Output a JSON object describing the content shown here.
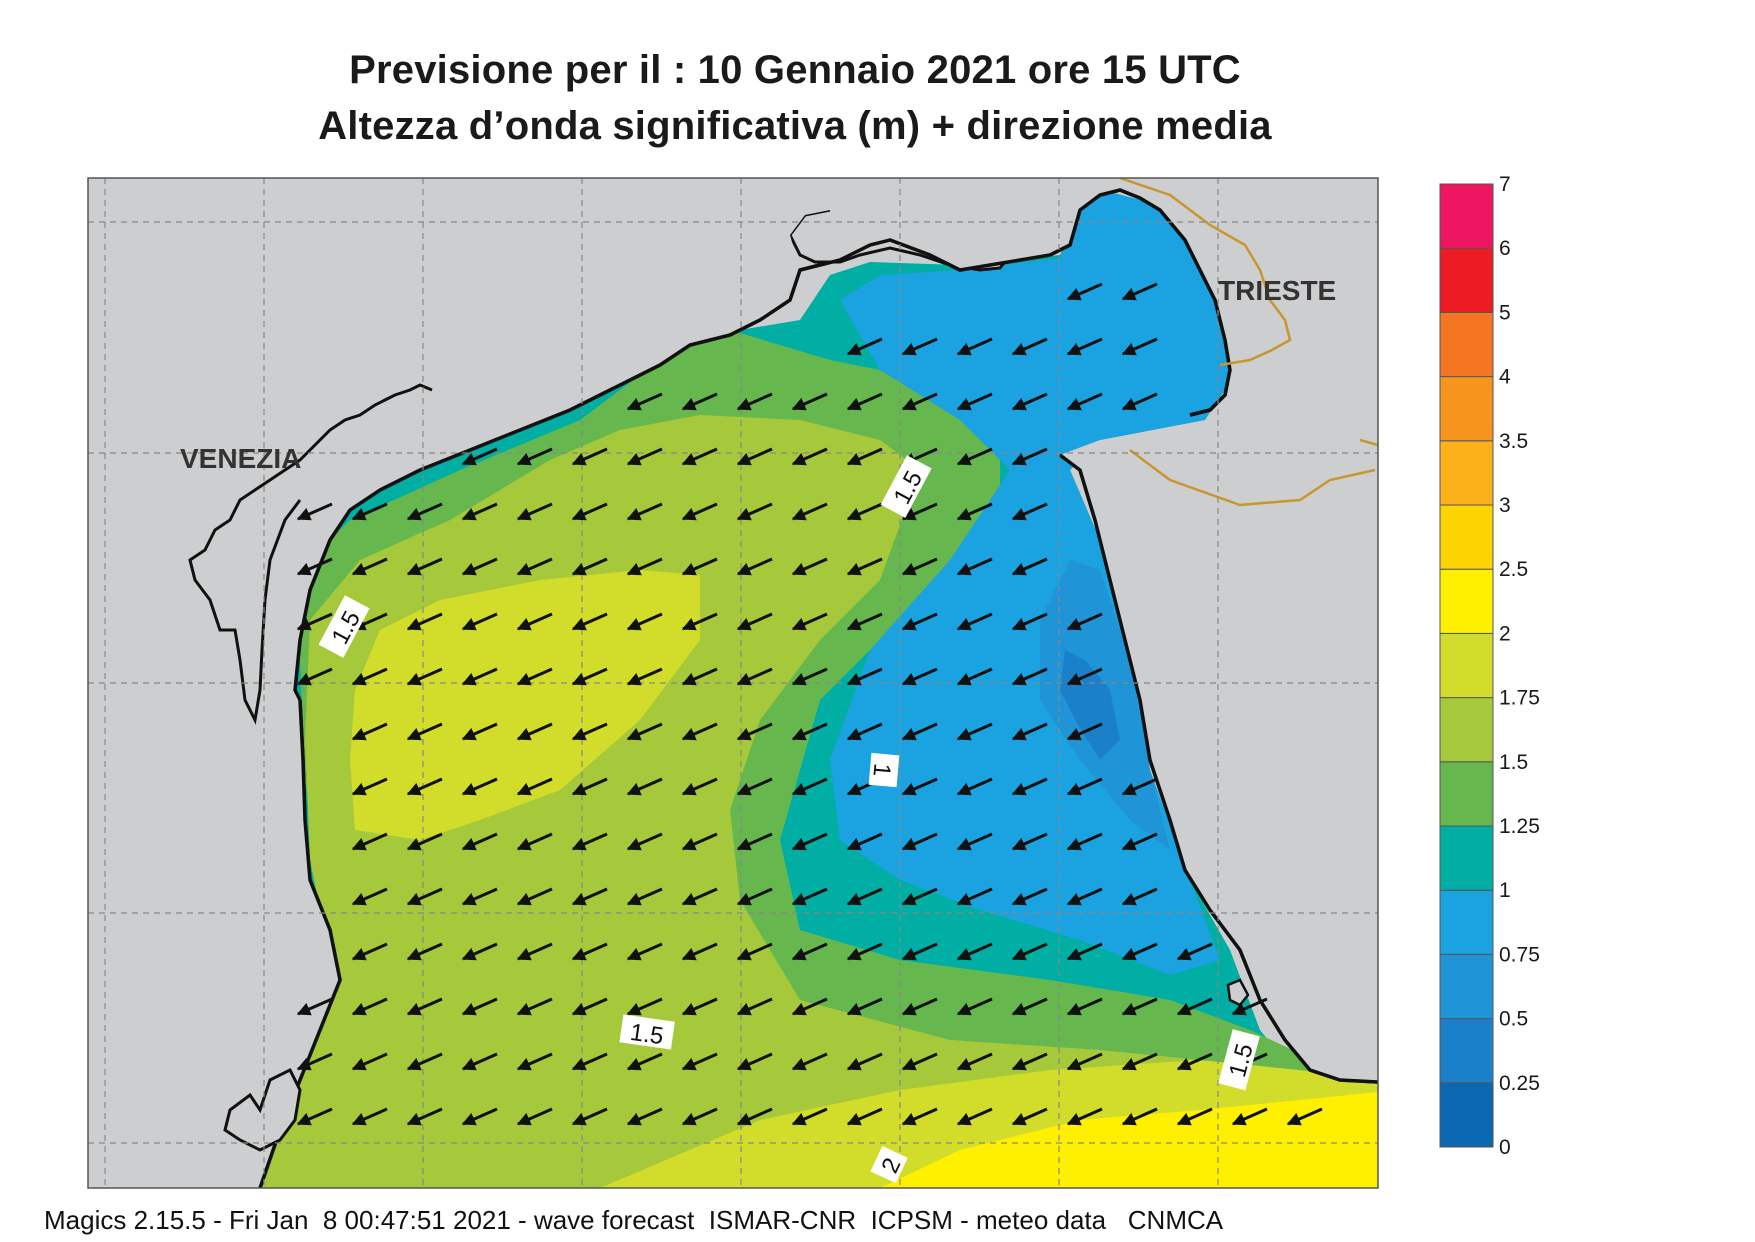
{
  "title_line1": "Previsione per il  :  10  Gennaio  2021   ore 15 UTC",
  "title_line2": "Altezza d’onda significativa (m) + direzione media",
  "places": [
    "VENEZIA",
    "TRIESTE"
  ],
  "contour_labels": [
    "1.5",
    "1.5",
    "1",
    "1.5",
    "1.5",
    "2"
  ],
  "footer": "Magics 2.15.5 - Fri Jan  8 00:47:51 2021 - wave forecast  ISMAR-CNR  ICPSM - meteo data   CNMCA",
  "legend": {
    "labels": [
      "0",
      "0.25",
      "0.5",
      "0.75",
      "1",
      "1.25",
      "1.5",
      "1.75",
      "2",
      "2.5",
      "3",
      "3.5",
      "4",
      "5",
      "6",
      "7"
    ],
    "colors": [
      "#0a68b0",
      "#1a80c9",
      "#1f95d8",
      "#1aa3e0",
      "#00aea4",
      "#66b84e",
      "#a6c93b",
      "#d1dd2a",
      "#fff000",
      "#fdd400",
      "#fbb21a",
      "#f7941d",
      "#f47522",
      "#ed1c24",
      "#ee1561"
    ]
  },
  "map_colors": {
    "land": "#cdcecf",
    "coast": "#111111",
    "border": "#c8962e",
    "graticule": "#888888"
  }
}
